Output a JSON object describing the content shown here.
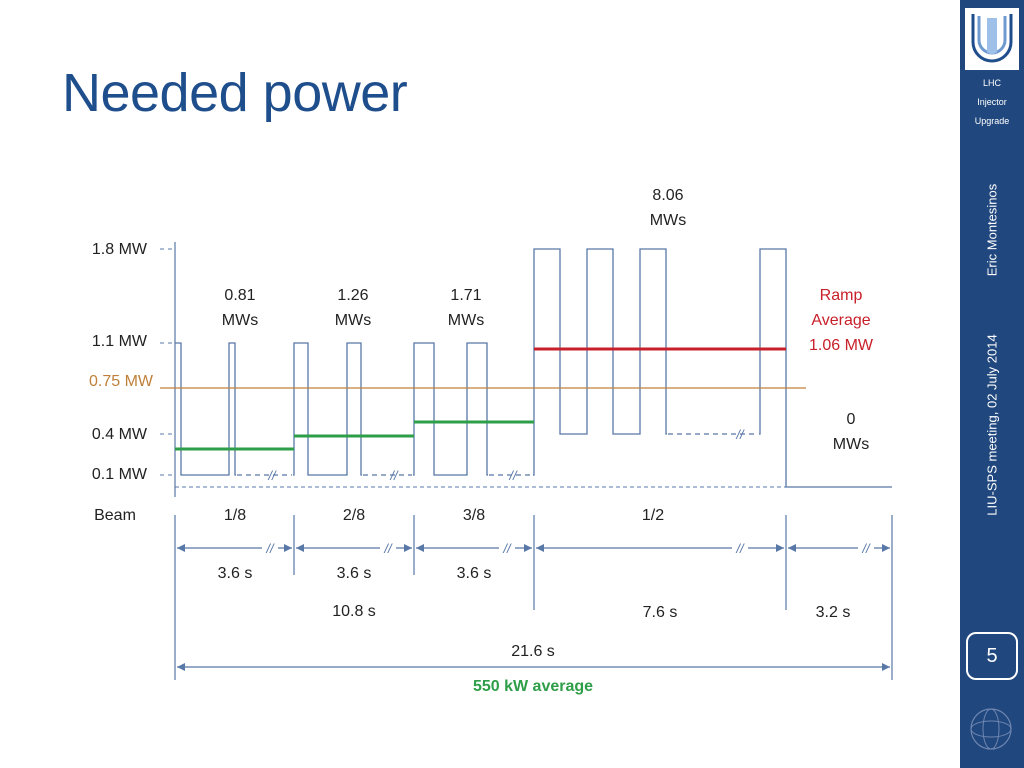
{
  "title": "Needed power",
  "sidebar": {
    "logo_line1": "LHC",
    "logo_line2": "Injector",
    "logo_line3": "Upgrade",
    "author": "Eric Montesinos",
    "meeting": "LIU-SPS meeting, 02 July 2014",
    "page_number": "5"
  },
  "diagram": {
    "y_labels": {
      "p18": "1.8 MW",
      "p11": "1.1 MW",
      "p075": "0.75 MW",
      "p04": "0.4 MW",
      "p01": "0.1 MW",
      "beam": "Beam"
    },
    "energies": {
      "e1": "0.81",
      "e1u": "MWs",
      "e2": "1.26",
      "e2u": "MWs",
      "e3": "1.71",
      "e3u": "MWs",
      "e4": "8.06",
      "e4u": "MWs",
      "e5": "0",
      "e5u": "MWs"
    },
    "ramp": {
      "l1": "Ramp",
      "l2": "Average",
      "l3": "1.06 MW"
    },
    "fractions": {
      "f1": "1/8",
      "f2": "2/8",
      "f3": "3/8",
      "f4": "1/2"
    },
    "times": {
      "t1": "3.6 s",
      "t2": "3.6 s",
      "t3": "3.6 s",
      "injection_total": "10.8 s",
      "ramp_total": "7.6 s",
      "flat": "3.2 s",
      "cycle_total": "21.6 s"
    },
    "average_label": "550 kW average",
    "break_mark": "//"
  },
  "colors": {
    "title": "#1F4E8C",
    "trace": "#5878A8",
    "average_line": "#C0803A",
    "step_average": "#2E9E48",
    "ramp_average": "#C8202A",
    "sidebar": "#20477E"
  }
}
